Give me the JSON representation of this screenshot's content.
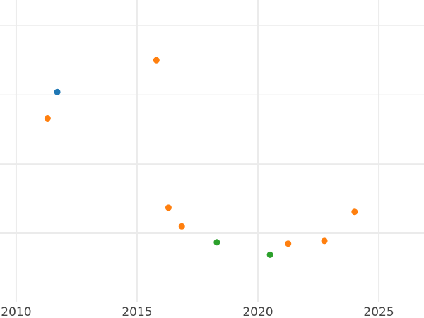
{
  "chart_data": {
    "type": "scatter",
    "title": "",
    "xlabel": "",
    "ylabel": "",
    "xlim": [
      2009.33,
      2026.87
    ],
    "ylim": [
      -1,
      3.37
    ],
    "x_ticks": [
      2010,
      2015,
      2020,
      2025
    ],
    "x_tick_labels": [
      "2010",
      "2015",
      "2020",
      "2025"
    ],
    "y_gridlines": [
      0,
      1,
      2,
      3
    ],
    "y_major_gridlines": [
      0,
      1
    ],
    "grid": true,
    "legend": "none",
    "points": [
      {
        "x": 2011.7,
        "y": 2.04,
        "color": "#1f77b4"
      },
      {
        "x": 2011.3,
        "y": 1.66,
        "color": "#ff7f0e"
      },
      {
        "x": 2015.8,
        "y": 2.5,
        "color": "#ff7f0e"
      },
      {
        "x": 2016.3,
        "y": 0.37,
        "color": "#ff7f0e"
      },
      {
        "x": 2016.85,
        "y": 0.1,
        "color": "#ff7f0e"
      },
      {
        "x": 2018.3,
        "y": -0.13,
        "color": "#2ca02c"
      },
      {
        "x": 2020.5,
        "y": -0.31,
        "color": "#2ca02c"
      },
      {
        "x": 2021.25,
        "y": -0.15,
        "color": "#ff7f0e"
      },
      {
        "x": 2022.75,
        "y": -0.11,
        "color": "#ff7f0e"
      },
      {
        "x": 2024.0,
        "y": 0.31,
        "color": "#ff7f0e"
      }
    ],
    "colors": {
      "grid": "#ebebeb",
      "tick_label": "#444444"
    }
  }
}
